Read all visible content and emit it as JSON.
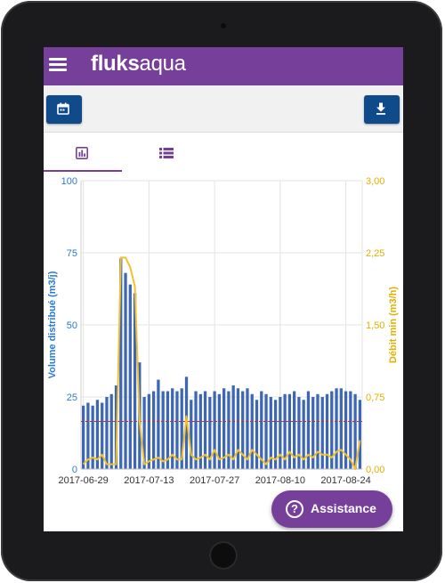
{
  "app": {
    "brand_bold": "fluks",
    "brand_light": "aqua"
  },
  "toolbar": {
    "calendar_icon": "calendar-icon",
    "download_icon": "download-icon"
  },
  "tabs": [
    {
      "id": "chart",
      "icon": "bar-chart-icon",
      "active": true
    },
    {
      "id": "list",
      "icon": "list-icon",
      "active": false
    }
  ],
  "assistance": {
    "label": "Assistance",
    "icon_glyph": "?"
  },
  "colors": {
    "brand": "#76409a",
    "button": "#0f4a8a",
    "bars": "#3d67b5",
    "line": "#f2c12e",
    "reference": "#cc2a2a",
    "left_axis": "#2a7ad6",
    "right_axis": "#e0b000"
  },
  "chart_data": {
    "type": "bar",
    "ylabel": "Volume distribué (m3/j)",
    "y2label": "Débit min (m3/h)",
    "ylim": [
      0,
      100
    ],
    "y2lim": [
      0,
      3
    ],
    "y_ticks": [
      "0",
      "25",
      "50",
      "75",
      "100"
    ],
    "y2_ticks": [
      "0,00",
      "0,75",
      "1,50",
      "2,25",
      "3,00"
    ],
    "x_ticks": [
      "2017-06-29",
      "2017-07-13",
      "2017-07-27",
      "2017-08-10",
      "2017-08-24"
    ],
    "start_date": "2017-06-29",
    "grid": true,
    "reference_value": 16.5,
    "volume": [
      22,
      23,
      22,
      24,
      23,
      25,
      26,
      29,
      73,
      68,
      64,
      61,
      37,
      25,
      26,
      27,
      31,
      27,
      27,
      28,
      27,
      28,
      32,
      24,
      27,
      26,
      27,
      25,
      27,
      26,
      28,
      27,
      29,
      28,
      27,
      28,
      26,
      24,
      27,
      26,
      25,
      24,
      25,
      26,
      26,
      27,
      25,
      24,
      27,
      25,
      26,
      25,
      26,
      27,
      28,
      28,
      27,
      27,
      26,
      24
    ],
    "debit_min": [
      0.05,
      0.1,
      0.12,
      0.1,
      0.15,
      0.05,
      0.05,
      0.05,
      2.2,
      2.2,
      2.1,
      1.9,
      0.5,
      0.05,
      0.08,
      0.1,
      0.12,
      0.08,
      0.1,
      0.15,
      0.1,
      0.1,
      0.55,
      0.15,
      0.1,
      0.12,
      0.15,
      0.1,
      0.2,
      0.1,
      0.12,
      0.15,
      0.1,
      0.2,
      0.15,
      0.1,
      0.2,
      0.15,
      0.1,
      0.05,
      0.12,
      0.1,
      0.15,
      0.1,
      0.18,
      0.12,
      0.15,
      0.1,
      0.15,
      0.12,
      0.18,
      0.15,
      0.15,
      0.12,
      0.18,
      0.2,
      0.15,
      0.1,
      0.0,
      0.3
    ]
  }
}
